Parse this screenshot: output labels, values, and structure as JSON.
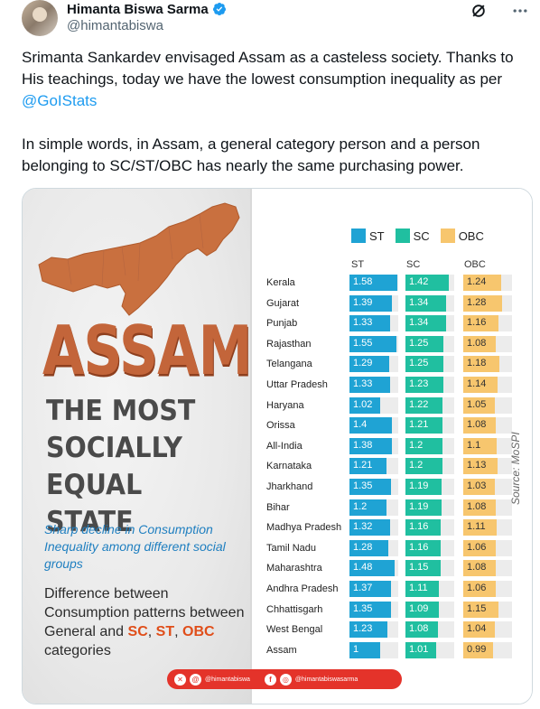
{
  "author": {
    "display_name": "Himanta Biswa Sarma",
    "handle": "@himantabiswa"
  },
  "tweet": {
    "text_part1": "Srimanta Sankardev envisaged Assam as a casteless society. Thanks to His teachings, today we have the lowest consumption inequality as per",
    "mention": "@GoIStats",
    "text_part2": "In simple words, in Assam, a general category person and a person belonging to SC/ST/OBC has nearly the same purchasing power."
  },
  "infographic": {
    "title": "ASSAM",
    "heading_line1": "THE MOST",
    "heading_line2": "SOCIALLY",
    "heading_line3": "EQUAL STATE",
    "subtext": "Sharp decline in Consumption Inequality among different social groups",
    "diff_text": "Difference between Consumption patterns between General and",
    "cat_sc": "SC",
    "cat_st": "ST",
    "cat_obc": "OBC",
    "cat_suffix": "categories",
    "comma": ",",
    "social_handle_1": "@himantabiswa",
    "social_handle_2": "@himantabiswasarma",
    "source": "Source: MoSPI"
  },
  "colors": {
    "st": "#1fa3d4",
    "sc": "#20bfa0",
    "obc": "#f7c66e",
    "accent": "#c3653a"
  },
  "chart_data": {
    "type": "bar",
    "series": [
      {
        "name": "ST",
        "values": [
          1.58,
          1.39,
          1.33,
          1.55,
          1.29,
          1.33,
          1.02,
          1.4,
          1.38,
          1.21,
          1.35,
          1.2,
          1.32,
          1.28,
          1.48,
          1.37,
          1.35,
          1.23,
          1
        ]
      },
      {
        "name": "SC",
        "values": [
          1.42,
          1.34,
          1.34,
          1.25,
          1.25,
          1.23,
          1.22,
          1.21,
          1.2,
          1.2,
          1.19,
          1.19,
          1.16,
          1.16,
          1.15,
          1.11,
          1.09,
          1.08,
          1.01
        ]
      },
      {
        "name": "OBC",
        "values": [
          1.24,
          1.28,
          1.16,
          1.08,
          1.18,
          1.14,
          1.05,
          1.08,
          1.1,
          1.13,
          1.03,
          1.08,
          1.11,
          1.06,
          1.08,
          1.06,
          1.15,
          1.04,
          0.99
        ]
      }
    ],
    "categories": [
      "Kerala",
      "Gujarat",
      "Punjab",
      "Rajasthan",
      "Telangana",
      "Uttar Pradesh",
      "Haryana",
      "Orissa",
      "All-India",
      "Karnataka",
      "Jharkhand",
      "Bihar",
      "Madhya Pradesh",
      "Tamil Nadu",
      "Maharashtra",
      "Andhra Pradesh",
      "Chhattisgarh",
      "West Bengal",
      "Assam"
    ],
    "value_labels": {
      "ST": [
        "1.58",
        "1.39",
        "1.33",
        "1.55",
        "1.29",
        "1.33",
        "1.02",
        "1.4",
        "1.38",
        "1.21",
        "1.35",
        "1.2",
        "1.32",
        "1.28",
        "1.48",
        "1.37",
        "1.35",
        "1.23",
        "1"
      ],
      "SC": [
        "1.42",
        "1.34",
        "1.34",
        "1.25",
        "1.25",
        "1.23",
        "1.22",
        "1.21",
        "1.2",
        "1.2",
        "1.19",
        "1.19",
        "1.16",
        "1.16",
        "1.15",
        "1.11",
        "1.09",
        "1.08",
        "1.01"
      ],
      "OBC": [
        "1.24",
        "1.28",
        "1.16",
        "1.08",
        "1.18",
        "1.14",
        "1.05",
        "1.08",
        "1.1",
        "1.13",
        "1.03",
        "1.08",
        "1.11",
        "1.06",
        "1.08",
        "1.06",
        "1.15",
        "1.04",
        "0.99"
      ]
    },
    "legend": [
      "ST",
      "SC",
      "OBC"
    ],
    "legend_position": "top",
    "grid": false
  }
}
